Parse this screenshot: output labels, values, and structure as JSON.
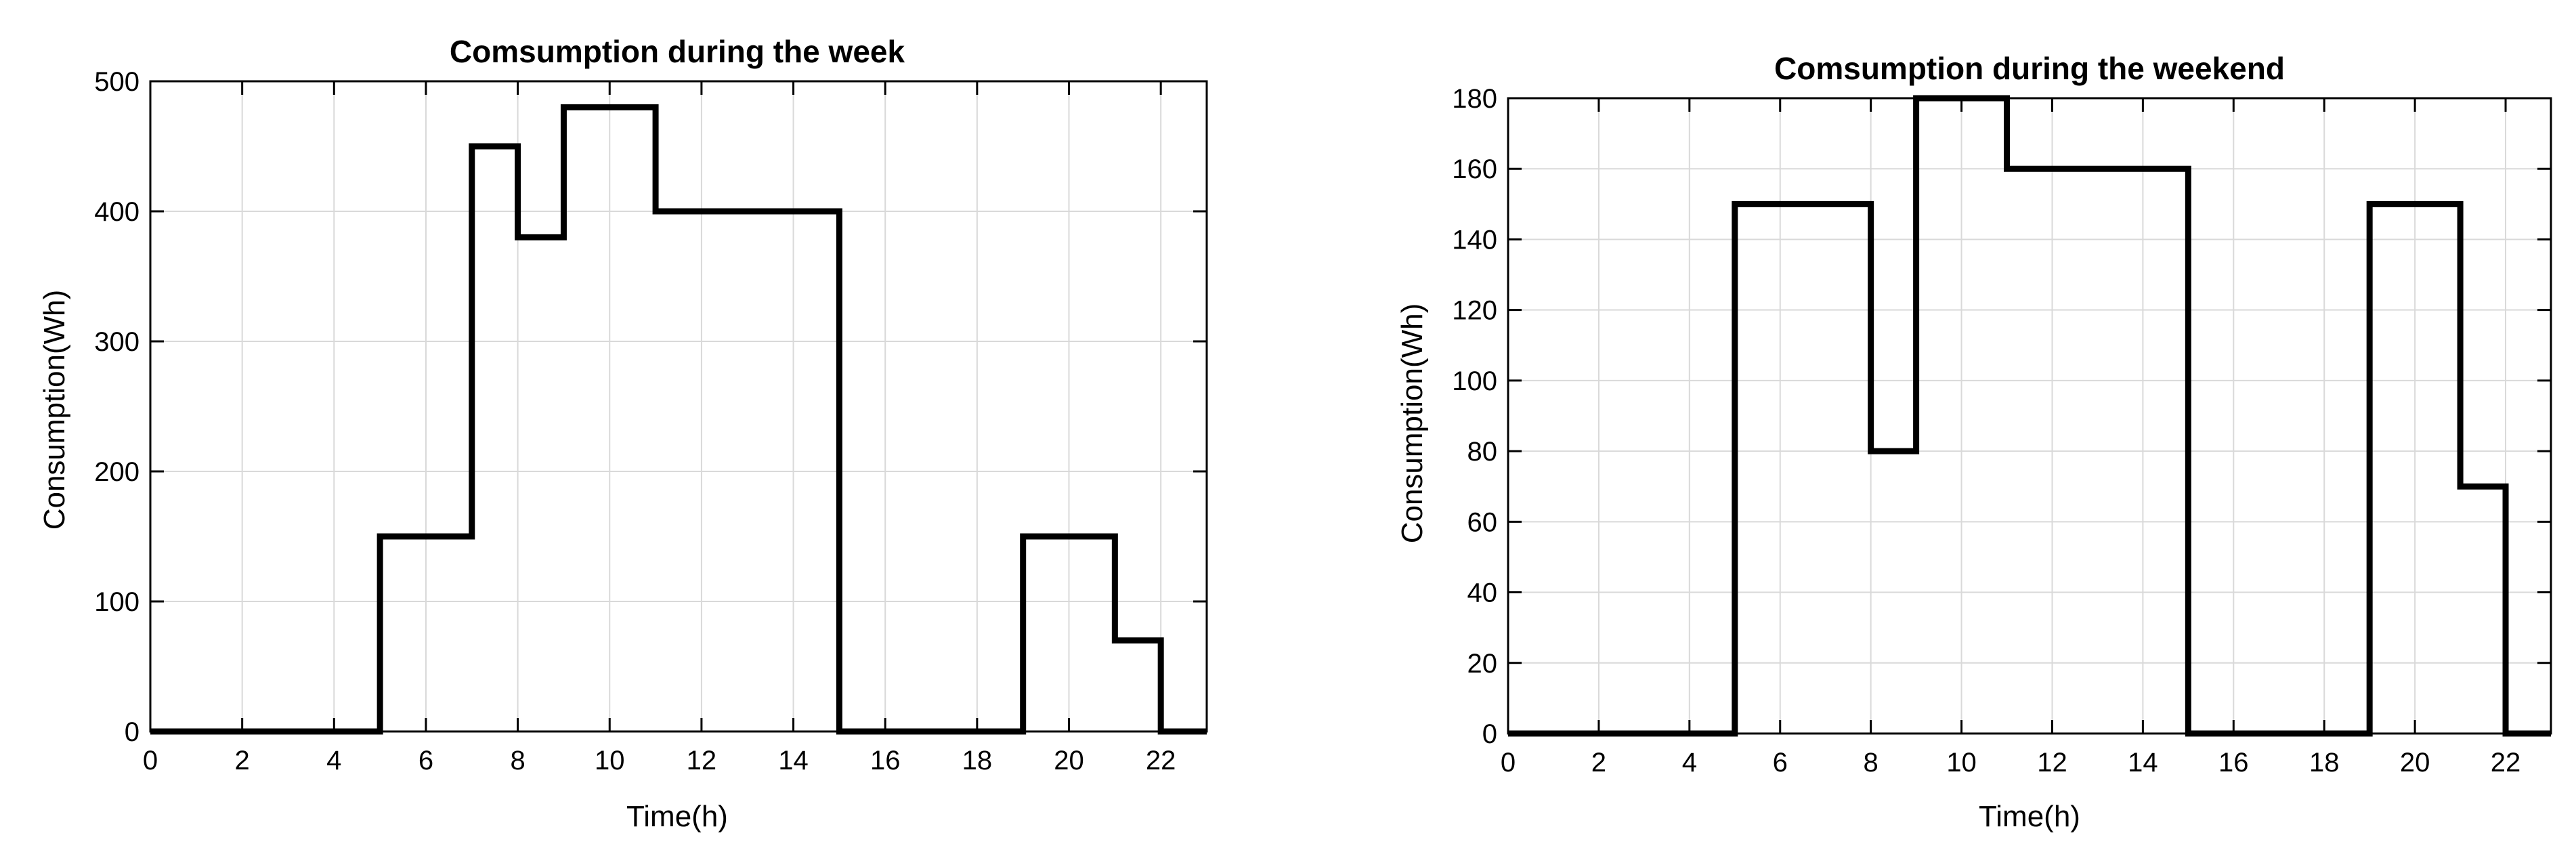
{
  "chart_data": [
    {
      "type": "line",
      "step": "post",
      "title": "Comsumption during the week",
      "xlabel": "Time(h)",
      "ylabel": "Consumption(Wh)",
      "xlim": [
        0,
        23
      ],
      "ylim": [
        0,
        500
      ],
      "xticks": [
        0,
        2,
        4,
        6,
        8,
        10,
        12,
        14,
        16,
        18,
        20,
        22
      ],
      "yticks": [
        0,
        100,
        200,
        300,
        400,
        500
      ],
      "grid": true,
      "series": [
        {
          "x": [
            0,
            1,
            2,
            3,
            4,
            5,
            6,
            7,
            8,
            9,
            10,
            11,
            12,
            13,
            14,
            15,
            16,
            17,
            18,
            19,
            20,
            21,
            22
          ],
          "values": [
            0,
            0,
            0,
            0,
            0,
            150,
            150,
            450,
            380,
            480,
            480,
            400,
            400,
            400,
            400,
            0,
            0,
            0,
            0,
            150,
            150,
            70,
            0
          ]
        }
      ]
    },
    {
      "type": "line",
      "step": "post",
      "title": "Comsumption during the weekend",
      "xlabel": "Time(h)",
      "ylabel": "Consumption(Wh)",
      "xlim": [
        0,
        23
      ],
      "ylim": [
        0,
        180
      ],
      "xticks": [
        0,
        2,
        4,
        6,
        8,
        10,
        12,
        14,
        16,
        18,
        20,
        22
      ],
      "yticks": [
        0,
        20,
        40,
        60,
        80,
        100,
        120,
        140,
        160,
        180
      ],
      "grid": true,
      "series": [
        {
          "x": [
            0,
            1,
            2,
            3,
            4,
            5,
            6,
            7,
            8,
            9,
            10,
            11,
            12,
            13,
            14,
            15,
            16,
            17,
            18,
            19,
            20,
            21,
            22
          ],
          "values": [
            0,
            0,
            0,
            0,
            0,
            150,
            150,
            150,
            80,
            180,
            180,
            160,
            160,
            160,
            160,
            0,
            0,
            0,
            0,
            150,
            150,
            70,
            0
          ]
        }
      ]
    }
  ]
}
